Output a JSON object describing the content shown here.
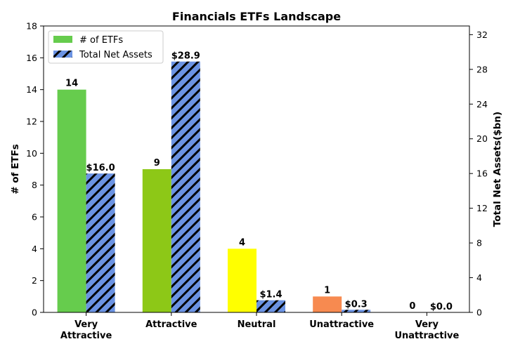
{
  "chart_data": {
    "type": "bar",
    "title": "Financials ETFs Landscape",
    "categories": [
      "Very\nAttractive",
      "Attractive",
      "Neutral",
      "Unattractive",
      "Very\nUnattractive"
    ],
    "series": [
      {
        "name": "# of ETFs",
        "axis": "left",
        "values": [
          14,
          9,
          4,
          1,
          0
        ],
        "labels": [
          "14",
          "9",
          "4",
          "1",
          "0"
        ],
        "colors": [
          "#66cc4d",
          "#8dc817",
          "#ffff00",
          "#f78a50",
          "#f03232"
        ]
      },
      {
        "name": "Total Net Assets",
        "axis": "right",
        "values": [
          16.0,
          28.9,
          1.4,
          0.3,
          0.0
        ],
        "labels": [
          "$16.0",
          "$28.9",
          "$1.4",
          "$0.3",
          "$0.0"
        ],
        "color": "#6b93e3",
        "hatch": "diagonal"
      }
    ],
    "ylabel": "# of ETFs",
    "ylabel_right": "Total Net Assets($bn)",
    "ylim": [
      0,
      18
    ],
    "ylim_right": [
      0,
      33
    ],
    "yticks": [
      0,
      2,
      4,
      6,
      8,
      10,
      12,
      14,
      16,
      18
    ],
    "yticks_right": [
      0,
      4,
      8,
      12,
      16,
      20,
      24,
      28,
      32
    ],
    "legend_position": "top-left",
    "grid": false
  }
}
